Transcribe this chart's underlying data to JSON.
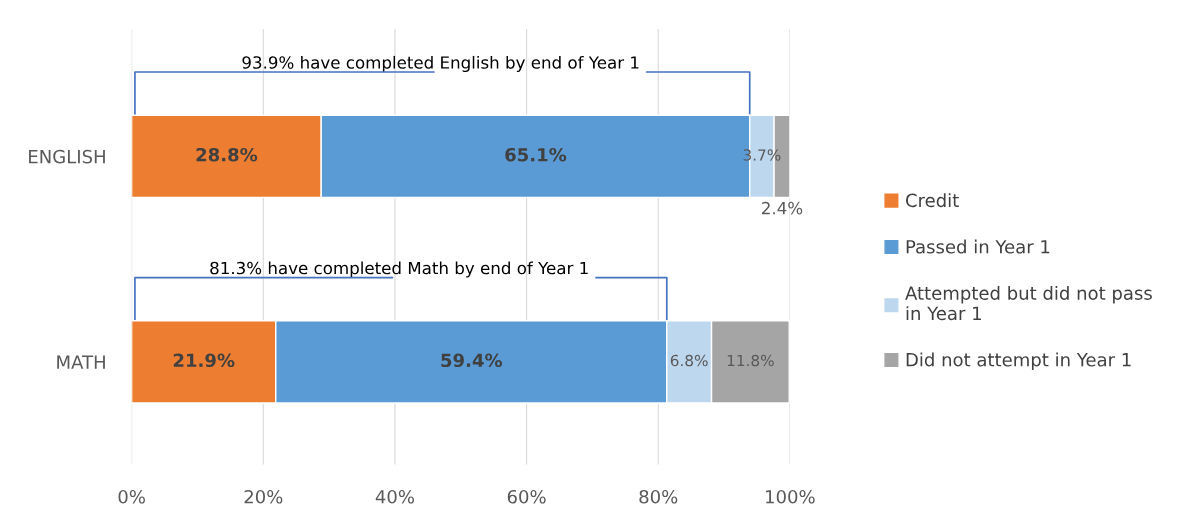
{
  "chart_data": {
    "type": "bar",
    "orientation": "horizontal",
    "stacked": true,
    "categories": [
      "ENGLISH",
      "MATH"
    ],
    "series": [
      {
        "name": "Credit",
        "color": "#ed7d31",
        "values": [
          28.8,
          21.9
        ],
        "value_labels": [
          "28.8%",
          "21.9%"
        ]
      },
      {
        "name": "Passed in Year 1",
        "color": "#5b9bd5",
        "values": [
          65.1,
          59.4
        ],
        "value_labels": [
          "65.1%",
          "59.4%"
        ]
      },
      {
        "name": "Attempted but did not pass\nin Year 1",
        "color": "#bdd7ee",
        "values": [
          3.7,
          6.8
        ],
        "value_labels": [
          "3.7%",
          "6.8%"
        ]
      },
      {
        "name": "Did not attempt in Year 1",
        "color": "#a5a5a5",
        "values": [
          2.4,
          11.8
        ],
        "value_labels": [
          "2.4%",
          "11.8%"
        ]
      }
    ],
    "xlim": [
      0,
      100
    ],
    "xticks": [
      {
        "value": 0,
        "label": "0%"
      },
      {
        "value": 20,
        "label": "20%"
      },
      {
        "value": 40,
        "label": "40%"
      },
      {
        "value": 60,
        "label": "60%"
      },
      {
        "value": 80,
        "label": "80%"
      },
      {
        "value": 100,
        "label": "100%"
      }
    ],
    "grid": "x",
    "legend": "right",
    "annotations": [
      {
        "text": "93.9% have completed English by end of Year 1",
        "x": 93.9,
        "y": "ENGLISH"
      },
      {
        "text": "81.3% have completed Math by end of Year 1",
        "x": 81.3,
        "y": "MATH"
      }
    ]
  }
}
